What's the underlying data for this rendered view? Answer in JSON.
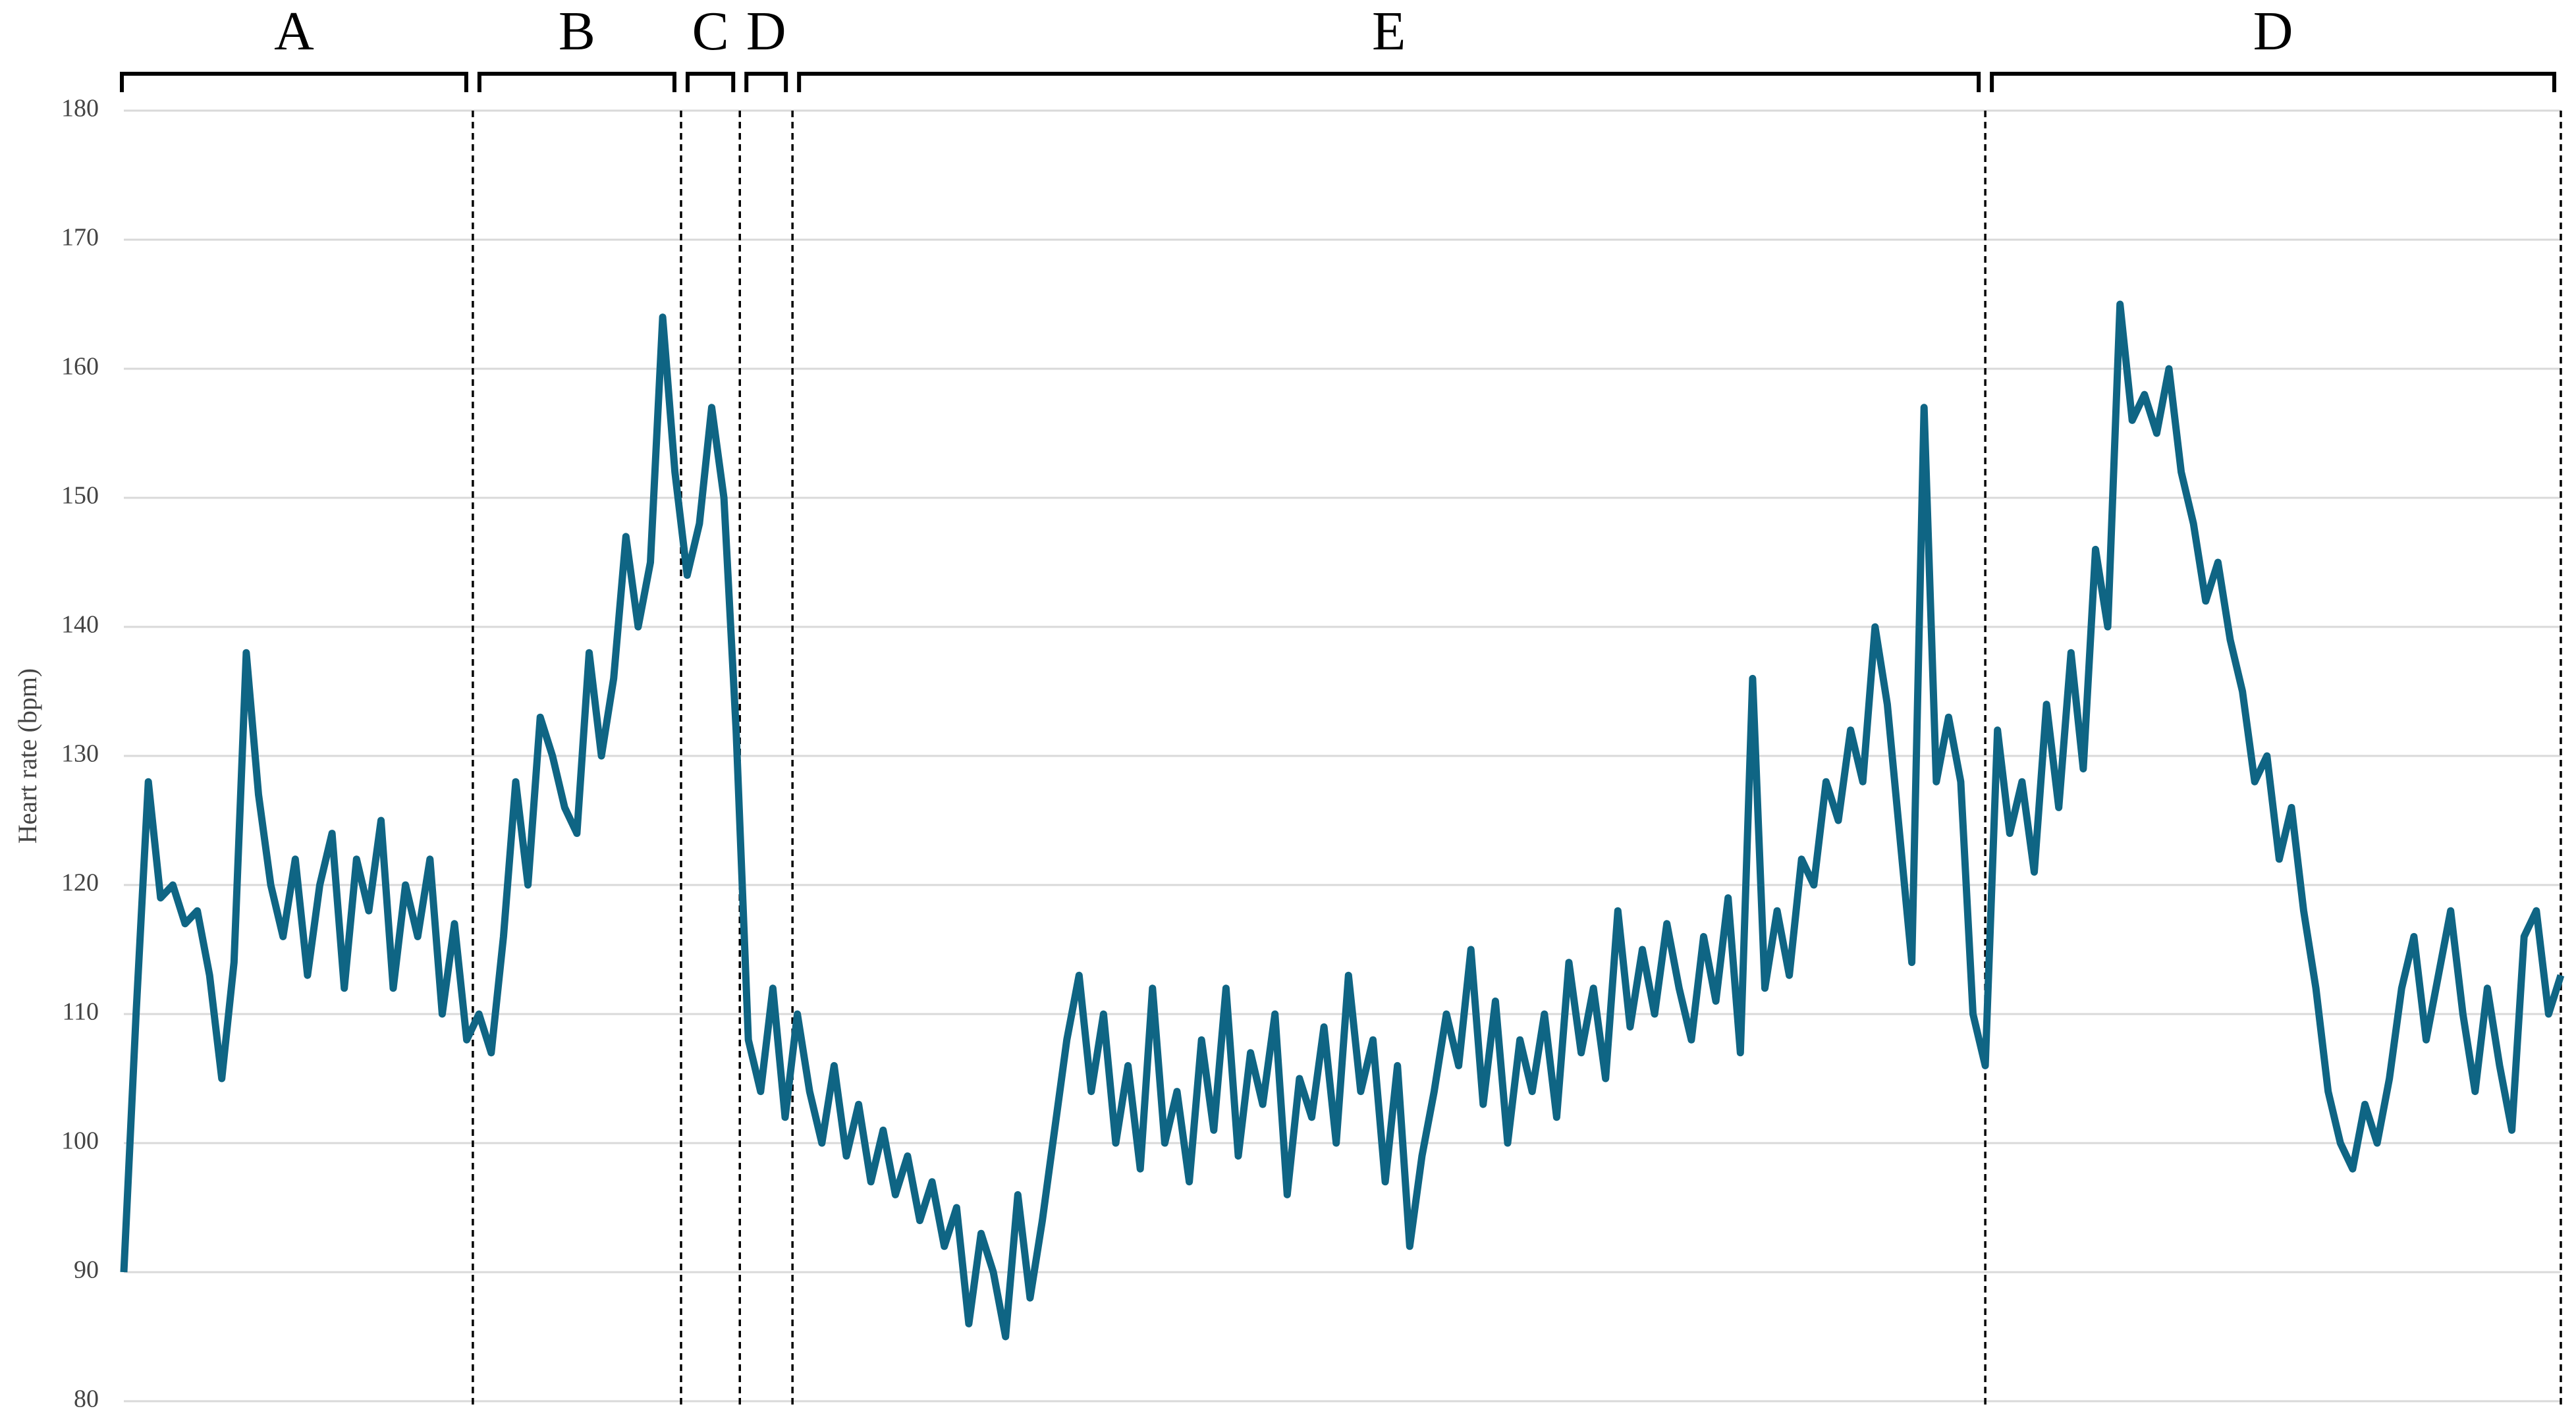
{
  "chart_data": {
    "type": "line",
    "y_label": "Heart rate (bpm)",
    "ylim": [
      80,
      180
    ],
    "yticks": [
      80,
      90,
      100,
      110,
      120,
      130,
      140,
      150,
      160,
      170,
      180
    ],
    "grid": true,
    "color": "#0f6584",
    "values": [
      90,
      110,
      128,
      119,
      120,
      117,
      118,
      113,
      105,
      114,
      138,
      127,
      120,
      116,
      122,
      113,
      120,
      124,
      112,
      122,
      118,
      125,
      112,
      120,
      116,
      122,
      110,
      117,
      108,
      110,
      107,
      116,
      128,
      120,
      133,
      130,
      126,
      124,
      138,
      130,
      136,
      147,
      140,
      145,
      164,
      152,
      144,
      148,
      157,
      150,
      132,
      108,
      104,
      112,
      102,
      110,
      104,
      100,
      106,
      99,
      103,
      97,
      101,
      96,
      99,
      94,
      97,
      92,
      95,
      86,
      93,
      90,
      85,
      96,
      88,
      94,
      101,
      108,
      113,
      104,
      110,
      100,
      106,
      98,
      112,
      100,
      104,
      97,
      108,
      101,
      112,
      99,
      107,
      103,
      110,
      96,
      105,
      102,
      109,
      100,
      113,
      104,
      108,
      97,
      106,
      92,
      99,
      104,
      110,
      106,
      115,
      103,
      111,
      100,
      108,
      104,
      110,
      102,
      114,
      107,
      112,
      105,
      118,
      109,
      115,
      110,
      117,
      112,
      108,
      116,
      111,
      119,
      107,
      136,
      112,
      118,
      113,
      122,
      120,
      128,
      125,
      132,
      128,
      140,
      134,
      124,
      114,
      157,
      128,
      133,
      128,
      110,
      106,
      132,
      124,
      128,
      121,
      134,
      126,
      138,
      129,
      146,
      140,
      165,
      156,
      158,
      155,
      160,
      152,
      148,
      142,
      145,
      139,
      135,
      128,
      130,
      122,
      126,
      118,
      112,
      104,
      100,
      98,
      103,
      100,
      105,
      112,
      116,
      108,
      113,
      118,
      110,
      104,
      112,
      106,
      101,
      116,
      118,
      110,
      113
    ],
    "phases": [
      {
        "label": "A",
        "end": 28.5
      },
      {
        "label": "B",
        "end": 45.5
      },
      {
        "label": "C",
        "end": 50.3
      },
      {
        "label": "D",
        "end": 54.6
      },
      {
        "label": "E",
        "end": 152
      },
      {
        "label": "D",
        "end": 199
      }
    ]
  }
}
